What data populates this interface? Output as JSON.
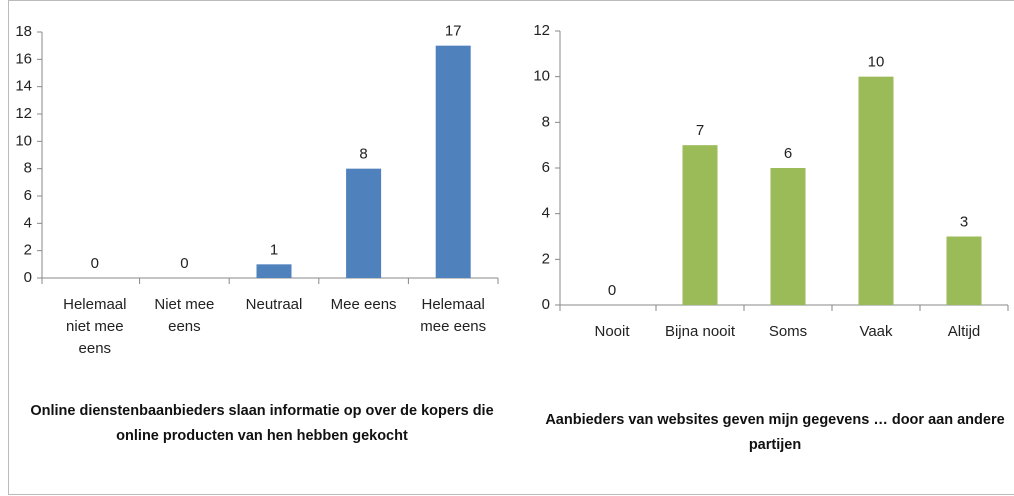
{
  "chart_data": [
    {
      "type": "bar",
      "title": "Online dienstenbaanbieders  slaan informatie op over de kopers die online producten van hen hebben gekocht",
      "categories": [
        "Helemaal niet mee eens",
        "Niet mee eens",
        "Neutraal",
        "Mee eens",
        "Helemaal mee eens"
      ],
      "values": [
        0,
        0,
        1,
        8,
        17
      ],
      "color": "#4f81bd",
      "ylim": [
        0,
        18
      ],
      "yticks": [
        0,
        2,
        4,
        6,
        8,
        10,
        12,
        14,
        16,
        18
      ]
    },
    {
      "type": "bar",
      "title": "Aanbieders van websites geven mijn gegevens … door aan andere partijen",
      "categories": [
        "Nooit",
        "Bijna nooit",
        "Soms",
        "Vaak",
        "Altijd"
      ],
      "values": [
        0,
        7,
        6,
        10,
        3
      ],
      "color": "#9bbb59",
      "ylim": [
        0,
        12
      ],
      "yticks": [
        0,
        2,
        4,
        6,
        8,
        10,
        12
      ]
    }
  ]
}
